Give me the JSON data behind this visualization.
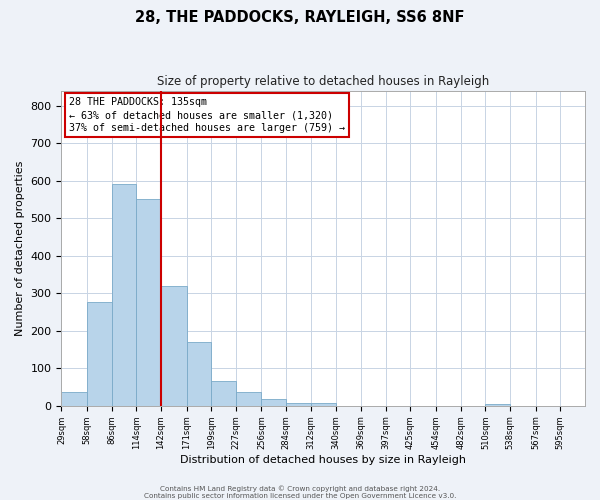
{
  "title": "28, THE PADDOCKS, RAYLEIGH, SS6 8NF",
  "subtitle": "Size of property relative to detached houses in Rayleigh",
  "xlabel": "Distribution of detached houses by size in Rayleigh",
  "ylabel": "Number of detached properties",
  "bar_edges": [
    29,
    58,
    86,
    114,
    142,
    171,
    199,
    227,
    256,
    284,
    312,
    340,
    369,
    397,
    425,
    454,
    482,
    510,
    538,
    567,
    595
  ],
  "bar_heights": [
    38,
    278,
    590,
    550,
    320,
    170,
    65,
    38,
    18,
    8,
    8,
    0,
    0,
    0,
    0,
    0,
    0,
    5,
    0,
    0,
    0
  ],
  "bar_color": "#b8d4ea",
  "vline_x": 142,
  "vline_color": "#cc0000",
  "annotation_title": "28 THE PADDOCKS: 135sqm",
  "annotation_line1": "← 63% of detached houses are smaller (1,320)",
  "annotation_line2": "37% of semi-detached houses are larger (759) →",
  "annotation_box_color": "#cc0000",
  "ylim": [
    0,
    840
  ],
  "yticks": [
    0,
    100,
    200,
    300,
    400,
    500,
    600,
    700,
    800
  ],
  "tick_labels": [
    "29sqm",
    "58sqm",
    "86sqm",
    "114sqm",
    "142sqm",
    "171sqm",
    "199sqm",
    "227sqm",
    "256sqm",
    "284sqm",
    "312sqm",
    "340sqm",
    "369sqm",
    "397sqm",
    "425sqm",
    "454sqm",
    "482sqm",
    "510sqm",
    "538sqm",
    "567sqm",
    "595sqm"
  ],
  "footer1": "Contains HM Land Registry data © Crown copyright and database right 2024.",
  "footer2": "Contains public sector information licensed under the Open Government Licence v3.0.",
  "bg_color": "#eef2f8",
  "plot_bg_color": "#ffffff",
  "grid_color": "#c8d4e4"
}
